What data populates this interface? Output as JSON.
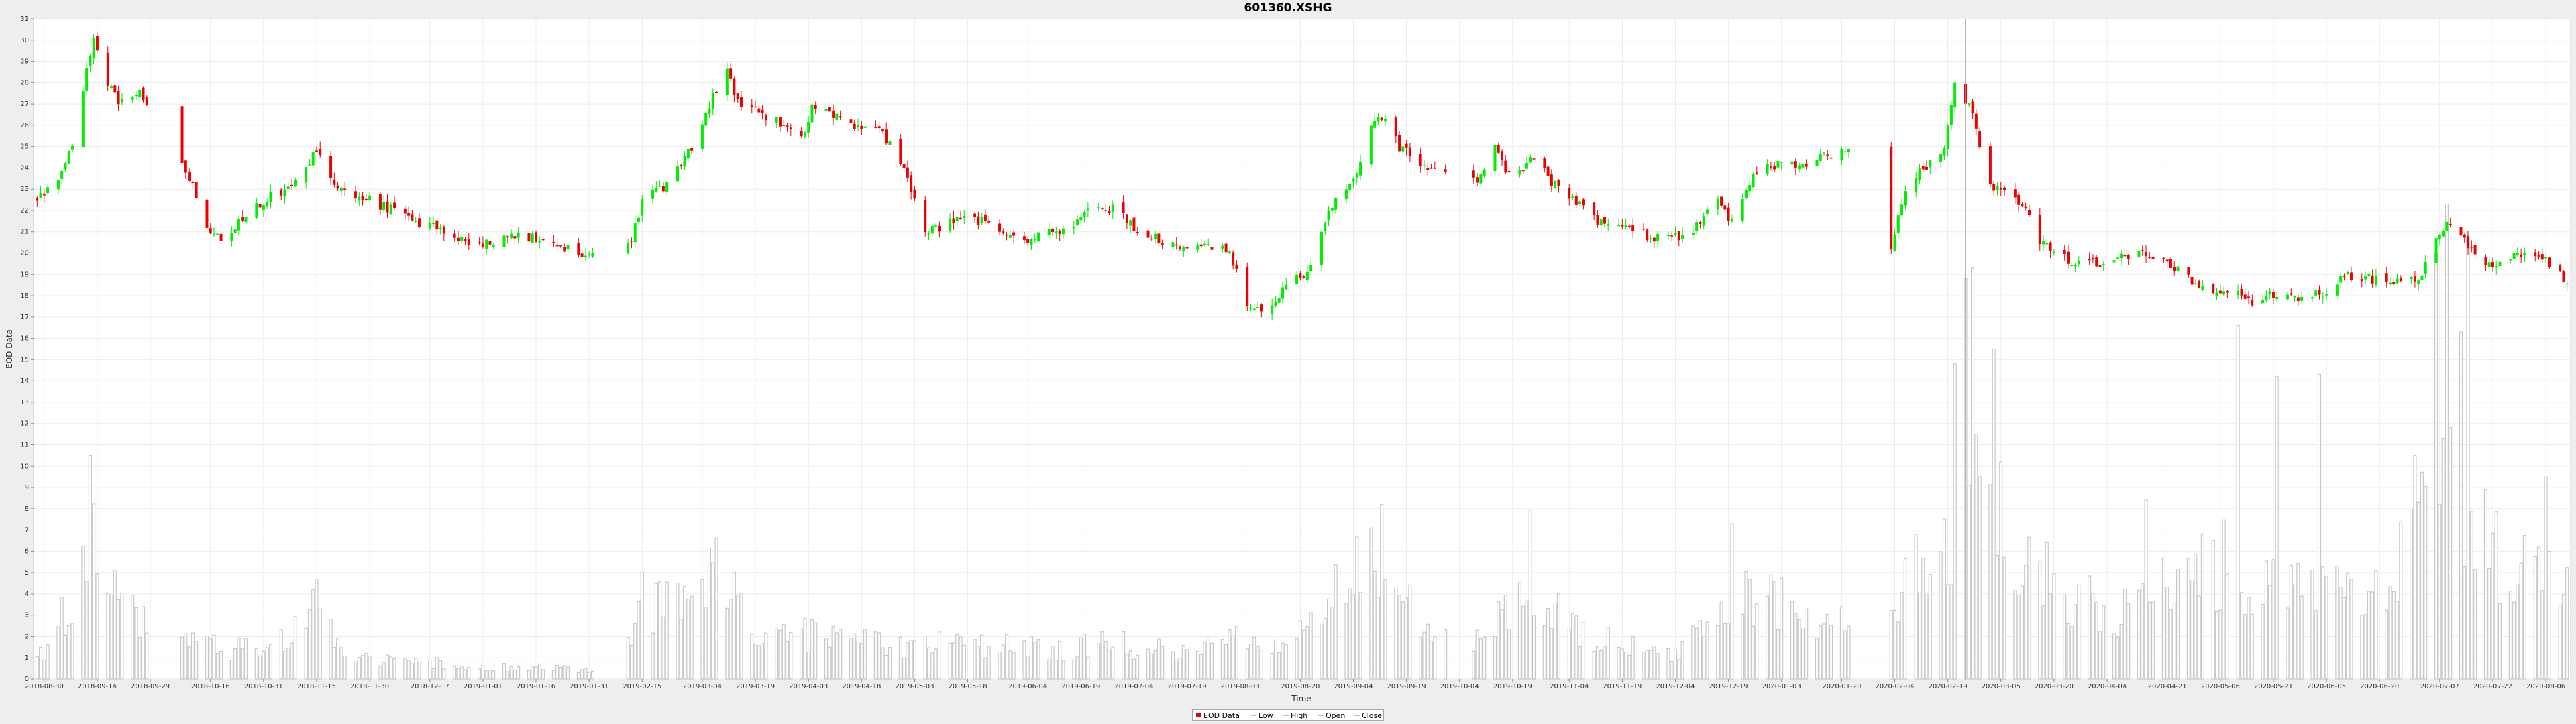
{
  "chart_data": {
    "type": "candlestick",
    "title": "601360.XSHG",
    "xlabel": "Time",
    "ylabel": "EOD Data",
    "ylim": [
      0,
      31
    ],
    "grid": true,
    "legend_position": "bottom-center",
    "legend": [
      "EOD Data",
      "Low",
      "High",
      "Open",
      "Close"
    ],
    "colors": {
      "up": "#00ee00",
      "down": "#ee0000",
      "volume": "#cccccc",
      "background": "#ffffff"
    },
    "date_range": [
      "2018-08-28",
      "2020-08-12"
    ],
    "x_ticks": [
      "2018-08-30",
      "2018-09-14",
      "2018-09-29",
      "2018-10-16",
      "2018-10-31",
      "2018-11-15",
      "2018-11-30",
      "2018-12-17",
      "2019-01-01",
      "2019-01-16",
      "2019-01-31",
      "2019-02-15",
      "2019-03-04",
      "2019-03-19",
      "2019-04-03",
      "2019-04-18",
      "2019-05-03",
      "2019-05-18",
      "2019-06-04",
      "2019-06-19",
      "2019-07-04",
      "2019-07-19",
      "2019-08-03",
      "2019-08-20",
      "2019-09-04",
      "2019-09-19",
      "2019-10-04",
      "2019-10-19",
      "2019-11-04",
      "2019-11-19",
      "2019-12-04",
      "2019-12-19",
      "2020-01-03",
      "2020-01-20",
      "2020-02-04",
      "2020-02-19",
      "2020-03-05",
      "2020-03-20",
      "2020-04-04",
      "2020-04-21",
      "2020-05-06",
      "2020-05-21",
      "2020-06-05",
      "2020-06-20",
      "2020-07-07",
      "2020-07-22",
      "2020-08-06"
    ],
    "y_ticks": [
      0,
      1,
      2,
      3,
      4,
      5,
      6,
      7,
      8,
      9,
      10,
      11,
      12,
      13,
      14,
      15,
      16,
      17,
      18,
      19,
      20,
      21,
      22,
      23,
      24,
      25,
      26,
      27,
      28,
      29,
      30,
      31
    ],
    "price_anchors": [
      [
        "2018-08-28",
        22.6
      ],
      [
        "2018-09-03",
        23.2
      ],
      [
        "2018-09-07",
        25.2
      ],
      [
        "2018-09-11",
        28.5
      ],
      [
        "2018-09-13",
        30.2
      ],
      [
        "2018-09-17",
        28.0
      ],
      [
        "2018-09-20",
        27.0
      ],
      [
        "2018-09-26",
        27.6
      ],
      [
        "2018-09-29",
        26.5
      ],
      [
        "2018-10-09",
        24.0
      ],
      [
        "2018-10-16",
        21.0
      ],
      [
        "2018-10-19",
        20.5
      ],
      [
        "2018-10-25",
        21.6
      ],
      [
        "2018-11-01",
        22.6
      ],
      [
        "2018-11-08",
        23.1
      ],
      [
        "2018-11-15",
        24.8
      ],
      [
        "2018-11-20",
        23.0
      ],
      [
        "2018-11-27",
        22.7
      ],
      [
        "2018-12-05",
        22.1
      ],
      [
        "2018-12-12",
        21.6
      ],
      [
        "2018-12-19",
        21.1
      ],
      [
        "2018-12-28",
        20.4
      ],
      [
        "2019-01-04",
        20.6
      ],
      [
        "2019-01-10",
        20.8
      ],
      [
        "2019-01-18",
        20.7
      ],
      [
        "2019-01-25",
        20.2
      ],
      [
        "2019-02-01",
        19.9
      ],
      [
        "2019-02-12",
        20.8
      ],
      [
        "2019-02-15",
        22.4
      ],
      [
        "2019-02-22",
        23.2
      ],
      [
        "2019-03-01",
        25.0
      ],
      [
        "2019-03-06",
        27.0
      ],
      [
        "2019-03-11",
        28.5
      ],
      [
        "2019-03-14",
        27.0
      ],
      [
        "2019-03-20",
        26.6
      ],
      [
        "2019-03-28",
        26.0
      ],
      [
        "2019-04-02",
        25.6
      ],
      [
        "2019-04-04",
        27.0
      ],
      [
        "2019-04-10",
        26.5
      ],
      [
        "2019-04-17",
        25.8
      ],
      [
        "2019-04-24",
        25.6
      ],
      [
        "2019-04-30",
        24.0
      ],
      [
        "2019-05-06",
        21.0
      ],
      [
        "2019-05-13",
        21.4
      ],
      [
        "2019-05-20",
        21.6
      ],
      [
        "2019-05-27",
        21.1
      ],
      [
        "2019-06-03",
        20.7
      ],
      [
        "2019-06-10",
        20.9
      ],
      [
        "2019-06-17",
        21.3
      ],
      [
        "2019-06-21",
        22.0
      ],
      [
        "2019-06-28",
        22.1
      ],
      [
        "2019-07-04",
        21.2
      ],
      [
        "2019-07-10",
        20.7
      ],
      [
        "2019-07-17",
        20.4
      ],
      [
        "2019-07-24",
        20.5
      ],
      [
        "2019-07-31",
        20.0
      ],
      [
        "2019-08-06",
        17.3
      ],
      [
        "2019-08-12",
        17.5
      ],
      [
        "2019-08-16",
        18.6
      ],
      [
        "2019-08-22",
        19.0
      ],
      [
        "2019-08-28",
        22.0
      ],
      [
        "2019-09-04",
        23.5
      ],
      [
        "2019-09-09",
        26.0
      ],
      [
        "2019-09-12",
        26.4
      ],
      [
        "2019-09-17",
        25.0
      ],
      [
        "2019-09-23",
        24.2
      ],
      [
        "2019-09-30",
        23.6
      ],
      [
        "2019-10-09",
        23.5
      ],
      [
        "2019-10-14",
        25.0
      ],
      [
        "2019-10-18",
        23.6
      ],
      [
        "2019-10-25",
        24.4
      ],
      [
        "2019-10-30",
        23.4
      ],
      [
        "2019-11-05",
        22.5
      ],
      [
        "2019-11-12",
        21.4
      ],
      [
        "2019-11-19",
        21.3
      ],
      [
        "2019-11-26",
        20.8
      ],
      [
        "2019-12-03",
        20.6
      ],
      [
        "2019-12-10",
        21.3
      ],
      [
        "2019-12-16",
        22.4
      ],
      [
        "2019-12-20",
        21.5
      ],
      [
        "2019-12-27",
        23.8
      ],
      [
        "2020-01-03",
        24.3
      ],
      [
        "2020-01-10",
        24.2
      ],
      [
        "2020-01-17",
        24.6
      ],
      [
        "2020-01-23",
        24.8
      ],
      [
        "2020-02-03",
        20.3
      ],
      [
        "2020-02-07",
        23.0
      ],
      [
        "2020-02-12",
        24.0
      ],
      [
        "2020-02-18",
        25.0
      ],
      [
        "2020-02-21",
        28.0
      ],
      [
        "2020-02-26",
        26.5
      ],
      [
        "2020-03-02",
        23.0
      ],
      [
        "2020-03-06",
        22.8
      ],
      [
        "2020-03-11",
        22.4
      ],
      [
        "2020-03-16",
        20.5
      ],
      [
        "2020-03-20",
        20.0
      ],
      [
        "2020-03-27",
        19.5
      ],
      [
        "2020-04-03",
        19.6
      ],
      [
        "2020-04-10",
        19.9
      ],
      [
        "2020-04-17",
        19.8
      ],
      [
        "2020-04-24",
        19.3
      ],
      [
        "2020-04-30",
        18.4
      ],
      [
        "2020-05-08",
        18.3
      ],
      [
        "2020-05-14",
        17.7
      ],
      [
        "2020-05-21",
        18.1
      ],
      [
        "2020-05-28",
        17.8
      ],
      [
        "2020-06-04",
        18.1
      ],
      [
        "2020-06-10",
        18.9
      ],
      [
        "2020-06-17",
        18.8
      ],
      [
        "2020-06-24",
        18.6
      ],
      [
        "2020-07-01",
        18.8
      ],
      [
        "2020-07-07",
        21.0
      ],
      [
        "2020-07-10",
        21.4
      ],
      [
        "2020-07-15",
        20.4
      ],
      [
        "2020-07-20",
        19.4
      ],
      [
        "2020-07-27",
        19.8
      ],
      [
        "2020-08-03",
        20.0
      ],
      [
        "2020-08-07",
        19.5
      ],
      [
        "2020-08-12",
        18.7
      ]
    ],
    "volume_anchors": [
      [
        "2018-08-28",
        1.0
      ],
      [
        "2018-09-06",
        3.8
      ],
      [
        "2018-09-12",
        7.5
      ],
      [
        "2018-09-17",
        4.5
      ],
      [
        "2018-09-25",
        3.0
      ],
      [
        "2018-10-09",
        1.8
      ],
      [
        "2018-10-25",
        1.5
      ],
      [
        "2018-11-08",
        2.2
      ],
      [
        "2018-11-15",
        3.6
      ],
      [
        "2018-11-22",
        1.3
      ],
      [
        "2018-12-12",
        0.9
      ],
      [
        "2019-01-01",
        0.6
      ],
      [
        "2019-02-01",
        0.5
      ],
      [
        "2019-02-15",
        3.2
      ],
      [
        "2019-03-01",
        4.5
      ],
      [
        "2019-03-08",
        5.0
      ],
      [
        "2019-03-20",
        2.4
      ],
      [
        "2019-04-08",
        2.2
      ],
      [
        "2019-04-24",
        1.7
      ],
      [
        "2019-05-20",
        1.8
      ],
      [
        "2019-06-10",
        1.5
      ],
      [
        "2019-06-28",
        1.8
      ],
      [
        "2019-07-20",
        1.4
      ],
      [
        "2019-08-08",
        2.2
      ],
      [
        "2019-08-16",
        1.5
      ],
      [
        "2019-08-28",
        4.5
      ],
      [
        "2019-09-09",
        6.5
      ],
      [
        "2019-09-23",
        3.0
      ],
      [
        "2019-10-10",
        2.0
      ],
      [
        "2019-10-20",
        4.0
      ],
      [
        "2019-10-28",
        3.4
      ],
      [
        "2019-11-15",
        2.0
      ],
      [
        "2019-12-05",
        1.2
      ],
      [
        "2019-12-16",
        3.3
      ],
      [
        "2019-12-27",
        4.2
      ],
      [
        "2020-01-06",
        3.5
      ],
      [
        "2020-01-20",
        3.0
      ],
      [
        "2020-02-05",
        4.2
      ],
      [
        "2020-02-18",
        6.0
      ],
      [
        "2020-02-26",
        10.0
      ],
      [
        "2020-03-05",
        8.0
      ],
      [
        "2020-03-20",
        4.5
      ],
      [
        "2020-04-08",
        3.2
      ],
      [
        "2020-04-21",
        4.5
      ],
      [
        "2020-05-08",
        6.0
      ],
      [
        "2020-05-21",
        4.5
      ],
      [
        "2020-06-05",
        4.5
      ],
      [
        "2020-06-20",
        4.5
      ],
      [
        "2020-07-07",
        10.0
      ],
      [
        "2020-07-14",
        9.0
      ],
      [
        "2020-07-22",
        6.5
      ],
      [
        "2020-08-06",
        5.5
      ],
      [
        "2020-08-12",
        4.2
      ]
    ],
    "volume_peaks": [
      [
        "2018-09-12",
        10.5
      ],
      [
        "2018-11-15",
        4.7
      ],
      [
        "2019-02-15",
        5.0
      ],
      [
        "2019-03-08",
        6.6
      ],
      [
        "2019-05-18",
        4.7
      ],
      [
        "2019-08-25",
        8.6
      ],
      [
        "2019-09-12",
        8.2
      ],
      [
        "2019-10-24",
        7.9
      ],
      [
        "2019-12-20",
        7.3
      ],
      [
        "2020-02-10",
        6.8
      ],
      [
        "2020-02-21",
        14.8
      ],
      [
        "2020-02-24",
        18.8
      ],
      [
        "2020-02-26",
        19.3
      ],
      [
        "2020-03-03",
        15.5
      ],
      [
        "2020-04-15",
        8.4
      ],
      [
        "2020-05-11",
        16.6
      ],
      [
        "2020-05-22",
        14.2
      ],
      [
        "2020-06-03",
        14.3
      ],
      [
        "2020-06-30",
        10.5
      ],
      [
        "2020-07-06",
        20.0
      ],
      [
        "2020-07-09",
        22.3
      ],
      [
        "2020-07-13",
        16.3
      ],
      [
        "2020-07-15",
        20.7
      ],
      [
        "2020-08-06",
        9.5
      ]
    ],
    "gaps": [
      [
        "2018-09-30",
        "2018-10-07"
      ],
      [
        "2019-02-02",
        "2019-02-10"
      ],
      [
        "2019-10-01",
        "2019-10-07"
      ],
      [
        "2020-01-23",
        "2020-02-02"
      ]
    ],
    "crosshair_date": "2020-02-24"
  }
}
